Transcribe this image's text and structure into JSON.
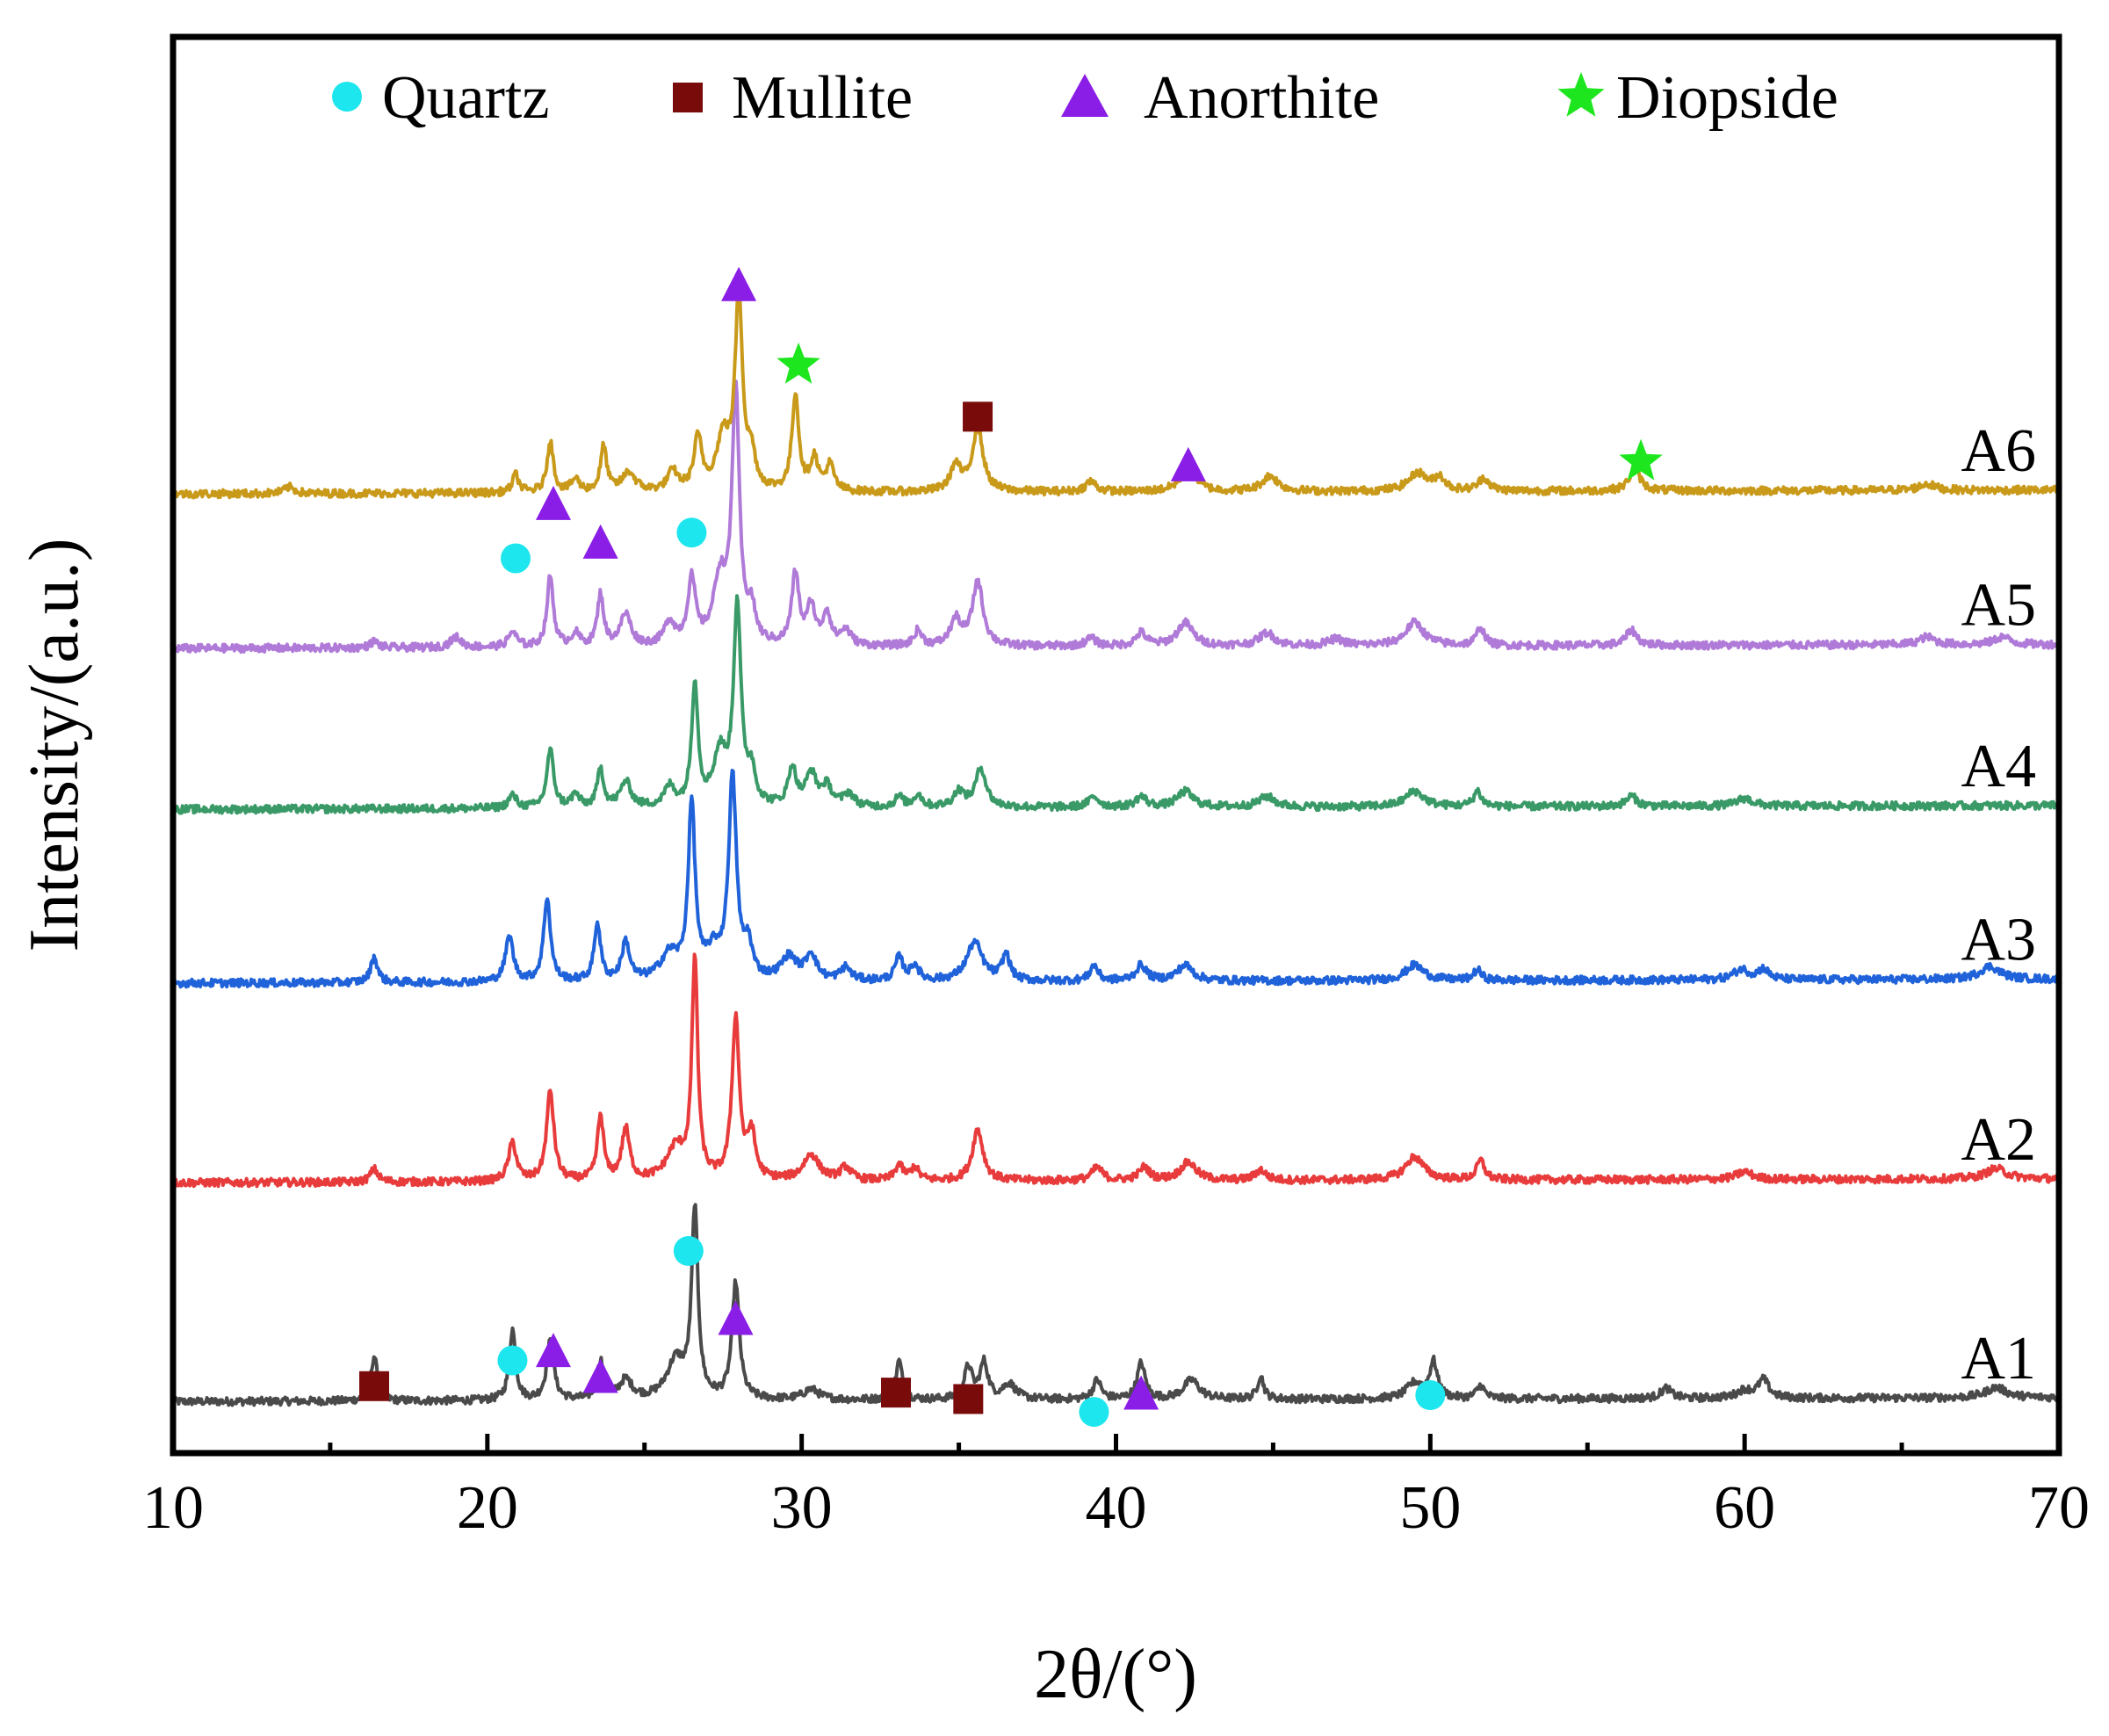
{
  "chart_data": {
    "type": "line",
    "title": "",
    "xlabel": "2θ/(°)",
    "ylabel": "Intensity/(a.u.)",
    "xlim": [
      10,
      70
    ],
    "xticks": [
      10,
      20,
      30,
      40,
      50,
      60,
      70
    ],
    "xtick_labels": [
      "10",
      "20",
      "30",
      "40",
      "50",
      "60",
      "70"
    ],
    "ylim": [
      0,
      1100
    ],
    "y_tick_labels_shown": false,
    "grid": false,
    "legend_position": "top",
    "legend": [
      {
        "name": "Quartz",
        "marker": "circle",
        "color": "#1ee6ee"
      },
      {
        "name": "Mullite",
        "marker": "square",
        "color": "#7a0b0b"
      },
      {
        "name": "Anorthite",
        "marker": "triangle",
        "color": "#8a1ee6"
      },
      {
        "name": "Diopside",
        "marker": "star",
        "color": "#1ee61e"
      }
    ],
    "series": [
      {
        "name": "A1",
        "color": "#4a4a4a",
        "baseline": 40,
        "slope": 0.05,
        "noise": 3,
        "peaks": [
          [
            16.4,
            35,
            0.12
          ],
          [
            20.8,
            55,
            0.12
          ],
          [
            22.0,
            45,
            0.14
          ],
          [
            23.6,
            30,
            0.12
          ],
          [
            24.4,
            15,
            0.25
          ],
          [
            26.6,
            145,
            0.12
          ],
          [
            26.0,
            30,
            0.35
          ],
          [
            27.9,
            90,
            0.14
          ],
          [
            30.3,
            8,
            0.3
          ],
          [
            33.1,
            30,
            0.12
          ],
          [
            35.3,
            25,
            0.15
          ],
          [
            35.8,
            28,
            0.15
          ],
          [
            36.6,
            12,
            0.25
          ],
          [
            39.4,
            15,
            0.15
          ],
          [
            40.8,
            28,
            0.15
          ],
          [
            42.4,
            15,
            0.3
          ],
          [
            44.6,
            18,
            0.12
          ],
          [
            49.5,
            12,
            0.3
          ],
          [
            50.1,
            28,
            0.15
          ],
          [
            51.6,
            10,
            0.15
          ],
          [
            57.5,
            8,
            0.2
          ],
          [
            60.0,
            6,
            0.3
          ],
          [
            60.6,
            14,
            0.2
          ],
          [
            68.0,
            8,
            0.4
          ]
        ]
      },
      {
        "name": "A2",
        "color": "#e83b3b",
        "baseline": 210,
        "slope": 0.05,
        "noise": 3,
        "peaks": [
          [
            16.4,
            10,
            0.15
          ],
          [
            20.8,
            30,
            0.15
          ],
          [
            22.0,
            70,
            0.14
          ],
          [
            23.6,
            50,
            0.12
          ],
          [
            24.4,
            40,
            0.15
          ],
          [
            26.6,
            170,
            0.11
          ],
          [
            26.0,
            25,
            0.35
          ],
          [
            27.9,
            125,
            0.14
          ],
          [
            28.4,
            35,
            0.15
          ],
          [
            30.3,
            20,
            0.3
          ],
          [
            31.4,
            10,
            0.2
          ],
          [
            33.1,
            12,
            0.15
          ],
          [
            33.6,
            10,
            0.15
          ],
          [
            35.6,
            40,
            0.2
          ],
          [
            39.4,
            10,
            0.2
          ],
          [
            40.9,
            10,
            0.2
          ],
          [
            42.3,
            14,
            0.3
          ],
          [
            44.6,
            8,
            0.2
          ],
          [
            49.5,
            18,
            0.35
          ],
          [
            51.6,
            15,
            0.15
          ],
          [
            60.0,
            6,
            0.3
          ],
          [
            68.0,
            8,
            0.4
          ]
        ]
      },
      {
        "name": "A3",
        "color": "#1f62d9",
        "baseline": 365,
        "slope": 0.05,
        "noise": 3,
        "peaks": [
          [
            16.4,
            20,
            0.13
          ],
          [
            20.7,
            35,
            0.15
          ],
          [
            21.9,
            65,
            0.13
          ],
          [
            23.5,
            45,
            0.12
          ],
          [
            24.4,
            30,
            0.15
          ],
          [
            26.5,
            135,
            0.13
          ],
          [
            25.8,
            20,
            0.35
          ],
          [
            27.8,
            155,
            0.15
          ],
          [
            27.2,
            20,
            0.3
          ],
          [
            28.3,
            25,
            0.15
          ],
          [
            29.6,
            18,
            0.3
          ],
          [
            30.3,
            20,
            0.2
          ],
          [
            31.4,
            10,
            0.2
          ],
          [
            33.1,
            18,
            0.15
          ],
          [
            33.6,
            12,
            0.15
          ],
          [
            35.5,
            30,
            0.3
          ],
          [
            36.5,
            20,
            0.15
          ],
          [
            39.3,
            12,
            0.15
          ],
          [
            40.8,
            12,
            0.2
          ],
          [
            42.2,
            12,
            0.3
          ],
          [
            49.5,
            12,
            0.35
          ],
          [
            51.5,
            8,
            0.15
          ],
          [
            59.9,
            8,
            0.3
          ],
          [
            60.6,
            8,
            0.2
          ],
          [
            67.8,
            10,
            0.4
          ]
        ]
      },
      {
        "name": "A4",
        "color": "#3a9a67",
        "baseline": 500,
        "slope": 0.05,
        "noise": 3,
        "peaks": [
          [
            20.8,
            10,
            0.15
          ],
          [
            22.0,
            45,
            0.13
          ],
          [
            22.8,
            10,
            0.15
          ],
          [
            23.6,
            30,
            0.12
          ],
          [
            24.4,
            20,
            0.2
          ],
          [
            25.8,
            15,
            0.2
          ],
          [
            26.6,
            95,
            0.12
          ],
          [
            27.4,
            40,
            0.25
          ],
          [
            27.95,
            155,
            0.14
          ],
          [
            28.4,
            25,
            0.15
          ],
          [
            29.7,
            30,
            0.15
          ],
          [
            30.3,
            25,
            0.2
          ],
          [
            30.8,
            15,
            0.2
          ],
          [
            31.5,
            10,
            0.2
          ],
          [
            33.1,
            8,
            0.15
          ],
          [
            33.7,
            10,
            0.15
          ],
          [
            35.0,
            12,
            0.2
          ],
          [
            35.7,
            30,
            0.2
          ],
          [
            39.3,
            8,
            0.2
          ],
          [
            40.8,
            8,
            0.2
          ],
          [
            42.2,
            12,
            0.3
          ],
          [
            44.8,
            8,
            0.3
          ],
          [
            49.5,
            12,
            0.35
          ],
          [
            51.5,
            12,
            0.15
          ],
          [
            56.4,
            8,
            0.2
          ],
          [
            60.0,
            6,
            0.3
          ]
        ]
      },
      {
        "name": "A5",
        "color": "#b07ad8",
        "baseline": 625,
        "slope": 0.05,
        "noise": 3,
        "peaks": [
          [
            16.4,
            5,
            0.15
          ],
          [
            19.0,
            8,
            0.2
          ],
          [
            20.8,
            12,
            0.15
          ],
          [
            22.0,
            55,
            0.12
          ],
          [
            22.8,
            10,
            0.15
          ],
          [
            23.6,
            40,
            0.12
          ],
          [
            24.4,
            25,
            0.2
          ],
          [
            25.8,
            18,
            0.2
          ],
          [
            26.5,
            50,
            0.15
          ],
          [
            27.4,
            50,
            0.25
          ],
          [
            27.9,
            195,
            0.14
          ],
          [
            28.4,
            25,
            0.15
          ],
          [
            29.8,
            55,
            0.14
          ],
          [
            30.3,
            30,
            0.15
          ],
          [
            30.8,
            25,
            0.15
          ],
          [
            31.4,
            12,
            0.2
          ],
          [
            33.7,
            12,
            0.15
          ],
          [
            34.9,
            20,
            0.2
          ],
          [
            35.6,
            50,
            0.2
          ],
          [
            39.2,
            6,
            0.2
          ],
          [
            40.8,
            10,
            0.2
          ],
          [
            42.2,
            18,
            0.3
          ],
          [
            44.8,
            10,
            0.3
          ],
          [
            47.0,
            5,
            0.3
          ],
          [
            49.5,
            18,
            0.35
          ],
          [
            51.6,
            14,
            0.15
          ],
          [
            56.4,
            12,
            0.2
          ],
          [
            65.8,
            6,
            0.3
          ],
          [
            68.2,
            6,
            0.3
          ]
        ]
      },
      {
        "name": "A6",
        "color": "#c99a1a",
        "baseline": 745,
        "slope": 0.05,
        "noise": 3,
        "peaks": [
          [
            13.7,
            5,
            0.2
          ],
          [
            20.9,
            14,
            0.12
          ],
          [
            22.0,
            40,
            0.12
          ],
          [
            22.8,
            10,
            0.15
          ],
          [
            23.7,
            35,
            0.12
          ],
          [
            24.5,
            15,
            0.25
          ],
          [
            25.9,
            15,
            0.2
          ],
          [
            26.7,
            40,
            0.15
          ],
          [
            27.5,
            40,
            0.25
          ],
          [
            28.0,
            150,
            0.14
          ],
          [
            28.4,
            25,
            0.15
          ],
          [
            29.8,
            75,
            0.13
          ],
          [
            30.4,
            25,
            0.15
          ],
          [
            30.9,
            20,
            0.15
          ],
          [
            34.9,
            20,
            0.2
          ],
          [
            35.6,
            50,
            0.2
          ],
          [
            39.2,
            8,
            0.2
          ],
          [
            42.3,
            18,
            0.3
          ],
          [
            44.9,
            12,
            0.3
          ],
          [
            49.6,
            14,
            0.35
          ],
          [
            50.3,
            10,
            0.2
          ],
          [
            51.7,
            10,
            0.2
          ],
          [
            56.5,
            18,
            0.2
          ],
          [
            65.8,
            5,
            0.3
          ]
        ]
      }
    ],
    "series_labels": [
      "A1",
      "A2",
      "A3",
      "A4",
      "A5",
      "A6"
    ],
    "annotations": [
      {
        "phase": "Quartz",
        "x": 20.9,
        "y": 695
      },
      {
        "phase": "Anorthite",
        "x": 22.1,
        "y": 735
      },
      {
        "phase": "Anorthite",
        "x": 23.6,
        "y": 705
      },
      {
        "phase": "Quartz",
        "x": 26.5,
        "y": 715
      },
      {
        "phase": "Anorthite",
        "x": 28.0,
        "y": 905
      },
      {
        "phase": "Diopside",
        "x": 29.9,
        "y": 845
      },
      {
        "phase": "Mullite",
        "x": 35.6,
        "y": 805
      },
      {
        "phase": "Anorthite",
        "x": 42.3,
        "y": 765
      },
      {
        "phase": "Diopside",
        "x": 56.7,
        "y": 770
      },
      {
        "phase": "Mullite",
        "x": 16.4,
        "y": 52
      },
      {
        "phase": "Quartz",
        "x": 20.8,
        "y": 72
      },
      {
        "phase": "Anorthite",
        "x": 22.1,
        "y": 77
      },
      {
        "phase": "Anorthite",
        "x": 23.6,
        "y": 57
      },
      {
        "phase": "Quartz",
        "x": 26.4,
        "y": 157
      },
      {
        "phase": "Anorthite",
        "x": 27.9,
        "y": 102
      },
      {
        "phase": "Mullite",
        "x": 33.0,
        "y": 47
      },
      {
        "phase": "Mullite",
        "x": 35.3,
        "y": 42
      },
      {
        "phase": "Quartz",
        "x": 39.3,
        "y": 32
      },
      {
        "phase": "Anorthite",
        "x": 40.8,
        "y": 44
      },
      {
        "phase": "Quartz",
        "x": 50.0,
        "y": 45
      }
    ]
  }
}
